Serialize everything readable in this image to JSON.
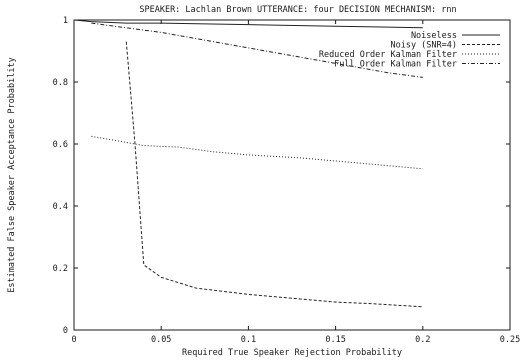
{
  "chart_data": {
    "type": "line",
    "title": "SPEAKER: Lachlan Brown UTTERANCE: four DECISION MECHANISM: rnn",
    "xlabel": "Required True Speaker Rejection Probability",
    "ylabel": "Estimated False Speaker Acceptance Probability",
    "xlim": [
      0,
      0.25
    ],
    "ylim": [
      0,
      1
    ],
    "x_ticks": [
      {
        "value": 0,
        "label": "0"
      },
      {
        "value": 0.05,
        "label": "0.05"
      },
      {
        "value": 0.1,
        "label": "0.1"
      },
      {
        "value": 0.15,
        "label": "0.15"
      },
      {
        "value": 0.2,
        "label": "0.2"
      },
      {
        "value": 0.25,
        "label": "0.25"
      }
    ],
    "y_ticks": [
      {
        "value": 0,
        "label": "0"
      },
      {
        "value": 0.2,
        "label": "0.2"
      },
      {
        "value": 0.4,
        "label": "0.4"
      },
      {
        "value": 0.6,
        "label": "0.6"
      },
      {
        "value": 0.8,
        "label": "0.8"
      },
      {
        "value": 1,
        "label": "1"
      }
    ],
    "grid": false,
    "legend_position": "top-right",
    "series": [
      {
        "name": "Noiseless",
        "style": "solid",
        "x": [
          0.0,
          0.01,
          0.03,
          0.05,
          0.1,
          0.15,
          0.2
        ],
        "y": [
          1.0,
          0.995,
          0.99,
          0.99,
          0.985,
          0.98,
          0.975
        ]
      },
      {
        "name": "Noisy (SNR=4)",
        "style": "dashed",
        "x": [
          0.03,
          0.035,
          0.04,
          0.05,
          0.07,
          0.1,
          0.13,
          0.15,
          0.17,
          0.2
        ],
        "y": [
          0.93,
          0.6,
          0.21,
          0.17,
          0.135,
          0.115,
          0.1,
          0.09,
          0.085,
          0.075
        ]
      },
      {
        "name": "Reduced Order Kalman Filter",
        "style": "dotted",
        "x": [
          0.01,
          0.02,
          0.04,
          0.06,
          0.08,
          0.1,
          0.13,
          0.15,
          0.17,
          0.2
        ],
        "y": [
          0.625,
          0.615,
          0.595,
          0.59,
          0.575,
          0.565,
          0.555,
          0.545,
          0.535,
          0.52
        ]
      },
      {
        "name": "Full Order Kalman Filter",
        "style": "dashdot",
        "x": [
          0.01,
          0.03,
          0.05,
          0.07,
          0.1,
          0.12,
          0.14,
          0.16,
          0.18,
          0.2
        ],
        "y": [
          0.99,
          0.975,
          0.96,
          0.94,
          0.91,
          0.89,
          0.87,
          0.85,
          0.83,
          0.815
        ]
      }
    ]
  }
}
